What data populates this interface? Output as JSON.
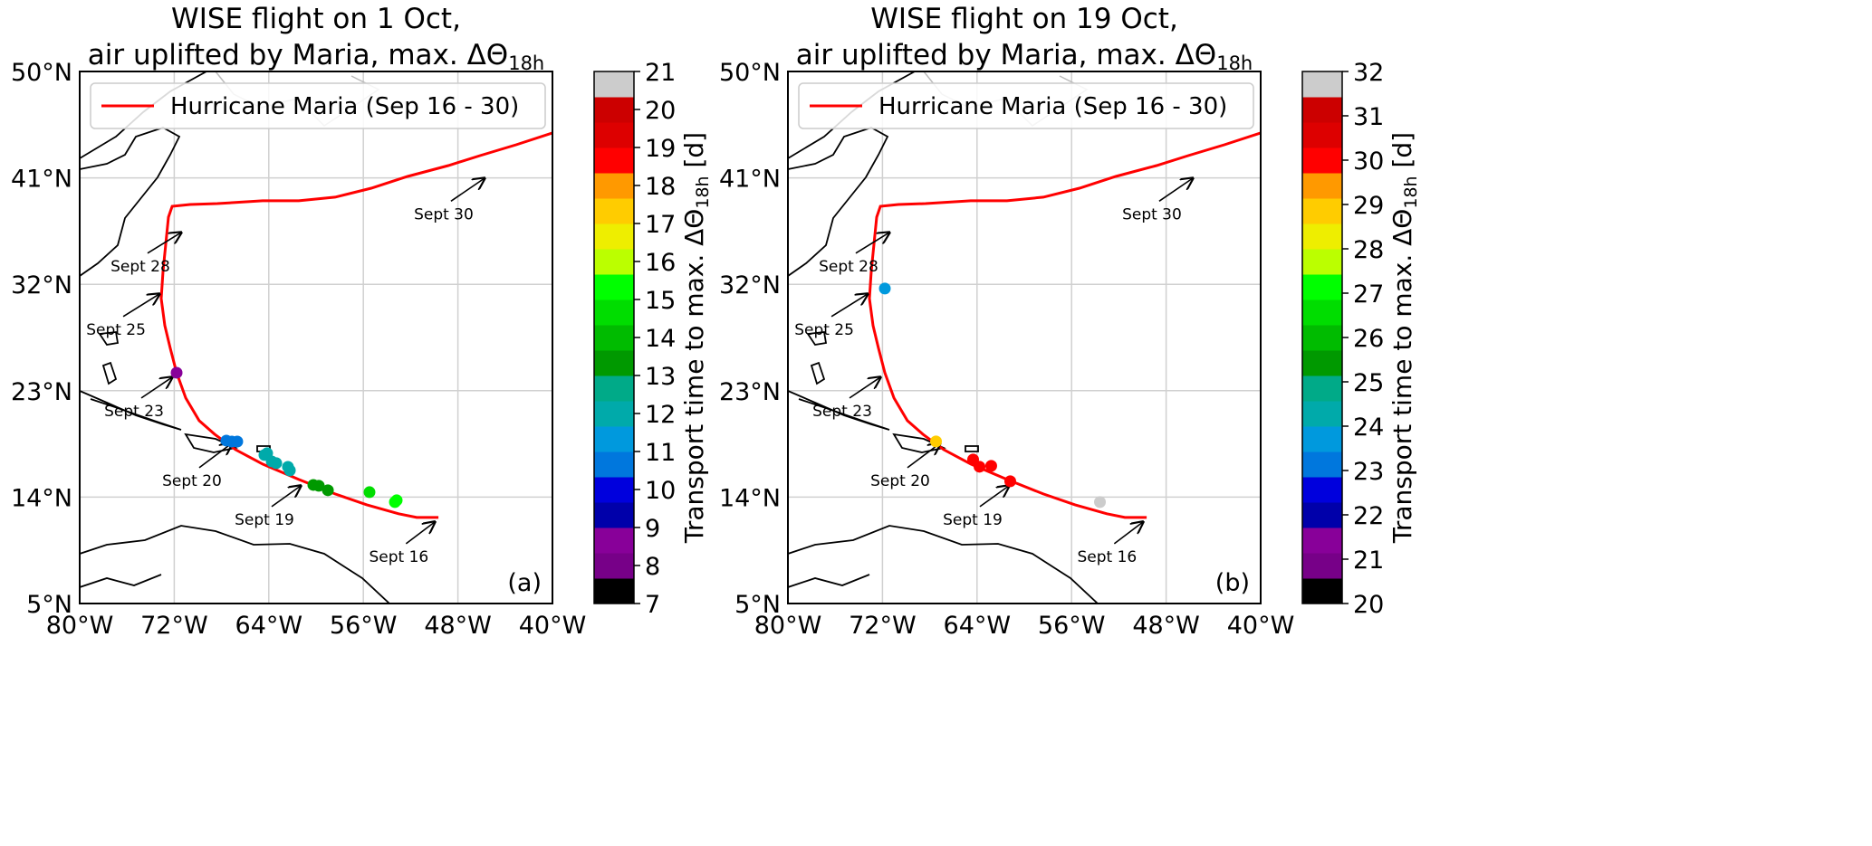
{
  "chart_data": [
    {
      "type": "scatter",
      "panel_label": "(a)",
      "title_line1": "WISE flight on 1 Oct,",
      "title_line2": "air uplifted by Maria, max. ΔΘ",
      "title_sub": "18h",
      "xlim": [
        -80,
        -40
      ],
      "ylim": [
        5,
        50
      ],
      "xticks": [
        -80,
        -72,
        -64,
        -56,
        -48,
        -40
      ],
      "xtick_labels": [
        "80°W",
        "72°W",
        "64°W",
        "56°W",
        "48°W",
        "40°W"
      ],
      "yticks": [
        5,
        14,
        23,
        32,
        41,
        50
      ],
      "ytick_labels": [
        "5°N",
        "14°N",
        "23°N",
        "32°N",
        "41°N",
        "50°N"
      ],
      "grid": true,
      "legend": {
        "label": "Hurricane Maria (Sep 16 - 30)",
        "color": "#ff0000",
        "placement": "top-left"
      },
      "colorbar": {
        "label": "Transport time to max. ΔΘ",
        "label_sub": "18h",
        "label_unit": " [d]",
        "range": [
          7,
          21
        ],
        "tick_labels": [
          "7",
          "8",
          "9",
          "10",
          "11",
          "12",
          "13",
          "14",
          "15",
          "16",
          "17",
          "18",
          "19",
          "20",
          "21"
        ]
      },
      "points": [
        {
          "lon": -71.8,
          "lat": 24.52,
          "value": 8.5
        },
        {
          "lon": -67.59,
          "lat": 18.78,
          "value": 10.6
        },
        {
          "lon": -67.13,
          "lat": 18.7,
          "value": 10.6
        },
        {
          "lon": -66.67,
          "lat": 18.7,
          "value": 10.6
        },
        {
          "lon": -64.37,
          "lat": 17.56,
          "value": 12.0
        },
        {
          "lon": -64.14,
          "lat": 17.71,
          "value": 12.0
        },
        {
          "lon": -63.75,
          "lat": 17.02,
          "value": 12.2
        },
        {
          "lon": -63.37,
          "lat": 16.87,
          "value": 12.2
        },
        {
          "lon": -62.38,
          "lat": 16.56,
          "value": 12.0
        },
        {
          "lon": -62.22,
          "lat": 16.26,
          "value": 12.0
        },
        {
          "lon": -60.23,
          "lat": 15.03,
          "value": 13.5
        },
        {
          "lon": -59.77,
          "lat": 14.96,
          "value": 13.5
        },
        {
          "lon": -59.0,
          "lat": 14.58,
          "value": 13.5
        },
        {
          "lon": -55.48,
          "lat": 14.42,
          "value": 14.5
        },
        {
          "lon": -53.33,
          "lat": 13.58,
          "value": 15.5
        },
        {
          "lon": -53.18,
          "lat": 13.73,
          "value": 15.5
        }
      ]
    },
    {
      "type": "scatter",
      "panel_label": "(b)",
      "title_line1": "WISE flight on 19 Oct,",
      "title_line2": "air uplifted by Maria, max. ΔΘ",
      "title_sub": "18h",
      "xlim": [
        -80,
        -40
      ],
      "ylim": [
        5,
        50
      ],
      "xticks": [
        -80,
        -72,
        -64,
        -56,
        -48,
        -40
      ],
      "xtick_labels": [
        "80°W",
        "72°W",
        "64°W",
        "56°W",
        "48°W",
        "40°W"
      ],
      "yticks": [
        5,
        14,
        23,
        32,
        41,
        50
      ],
      "ytick_labels": [
        "5°N",
        "14°N",
        "23°N",
        "32°N",
        "41°N",
        "50°N"
      ],
      "grid": true,
      "legend": {
        "label": "Hurricane Maria (Sep 16 - 30)",
        "color": "#ff0000",
        "placement": "top-left"
      },
      "colorbar": {
        "label": "Transport time to max. ΔΘ",
        "label_sub": "18h",
        "label_unit": " [d]",
        "range": [
          20,
          32
        ],
        "tick_labels": [
          "20",
          "21",
          "22",
          "23",
          "24",
          "25",
          "26",
          "27",
          "28",
          "29",
          "30",
          "31",
          "32"
        ]
      },
      "points": [
        {
          "lon": -71.8,
          "lat": 31.64,
          "value": 23.5
        },
        {
          "lon": -67.47,
          "lat": 18.71,
          "value": 28.6
        },
        {
          "lon": -64.33,
          "lat": 17.18,
          "value": 30.0
        },
        {
          "lon": -63.79,
          "lat": 16.57,
          "value": 30.0
        },
        {
          "lon": -62.8,
          "lat": 16.64,
          "value": 30.0
        },
        {
          "lon": -61.19,
          "lat": 15.34,
          "value": 30.0
        },
        {
          "lon": -53.6,
          "lat": 13.58,
          "value": 31.6
        }
      ]
    }
  ],
  "colormap": [
    "#000000",
    "#770088",
    "#880099",
    "#0000aa",
    "#0000dd",
    "#0077dd",
    "#0099dd",
    "#00aaaa",
    "#00aa88",
    "#009900",
    "#00bb00",
    "#00dd00",
    "#00ff00",
    "#bbff00",
    "#eeee00",
    "#ffcc00",
    "#ff9900",
    "#ff0000",
    "#dd0000",
    "#cc0000",
    "#cccccc"
  ],
  "track": [
    [
      -49.65,
      12.28
    ],
    [
      -51.49,
      12.28
    ],
    [
      -53.02,
      12.59
    ],
    [
      -55.71,
      13.35
    ],
    [
      -58.39,
      14.27
    ],
    [
      -61.46,
      15.49
    ],
    [
      -64.52,
      16.79
    ],
    [
      -66.82,
      18.02
    ],
    [
      -68.58,
      19.32
    ],
    [
      -69.89,
      20.47
    ],
    [
      -71.03,
      22.38
    ],
    [
      -71.8,
      24.52
    ],
    [
      -72.34,
      26.59
    ],
    [
      -72.8,
      28.5
    ],
    [
      -73.1,
      30.8
    ],
    [
      -72.95,
      33.09
    ],
    [
      -72.72,
      35.39
    ],
    [
      -72.49,
      37.68
    ],
    [
      -72.18,
      38.6
    ],
    [
      -70.65,
      38.75
    ],
    [
      -68.35,
      38.83
    ],
    [
      -64.52,
      39.06
    ],
    [
      -61.46,
      39.06
    ],
    [
      -58.39,
      39.37
    ],
    [
      -55.33,
      40.13
    ],
    [
      -52.26,
      41.12
    ],
    [
      -48.81,
      42.04
    ],
    [
      -46.13,
      42.88
    ],
    [
      -43.07,
      43.8
    ],
    [
      -40.0,
      44.8
    ]
  ],
  "annotations": [
    {
      "label": "Sept 30",
      "tip": [
        -45.75,
        40.97
      ],
      "text": [
        -49.2,
        37.5
      ]
    },
    {
      "label": "Sept 28",
      "tip": [
        -71.42,
        36.38
      ],
      "text": [
        -74.87,
        33.1
      ]
    },
    {
      "label": "Sept 25",
      "tip": [
        -73.26,
        31.18
      ],
      "text": [
        -76.93,
        27.74
      ]
    },
    {
      "label": "Sept 23",
      "tip": [
        -72.18,
        24.14
      ],
      "text": [
        -75.4,
        20.85
      ]
    },
    {
      "label": "Sept 20",
      "tip": [
        -67.13,
        18.55
      ],
      "text": [
        -70.5,
        14.96
      ]
    },
    {
      "label": "Sept 19",
      "tip": [
        -61.3,
        14.96
      ],
      "text": [
        -64.37,
        11.67
      ]
    },
    {
      "label": "Sept 16",
      "tip": [
        -49.96,
        11.9
      ],
      "text": [
        -53.0,
        8.53
      ]
    }
  ]
}
